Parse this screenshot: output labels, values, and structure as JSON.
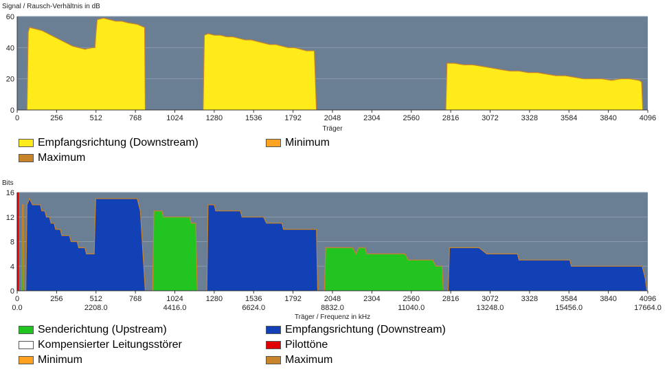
{
  "colors": {
    "plot_bg": "#6a7f93",
    "grid": "#8a9aab",
    "snr_fill": "#ffea1a",
    "downstream": "#1240b5",
    "upstream": "#22c422",
    "crosstalk": "#ffffff",
    "pilot": "#e00000",
    "minimum": "#ffa21f",
    "maximum": "#c8842a"
  },
  "chart_data": [
    {
      "type": "area",
      "title": "Signal / Rausch-Verhältnis in dB",
      "xlabel": "Träger",
      "ylabel": "Signal / Rausch-Verhältnis in dB",
      "xlim": [
        0,
        4096
      ],
      "ylim": [
        0,
        60
      ],
      "xticks": [
        "0",
        "256",
        "512",
        "768",
        "1024",
        "1280",
        "1536",
        "1792",
        "2048",
        "2304",
        "2560",
        "2816",
        "3072",
        "3328",
        "3584",
        "3840",
        "4096"
      ],
      "yticks": [
        "0",
        "20",
        "40",
        "60"
      ],
      "series": [
        {
          "name": "Empfangsrichtung (Downstream)",
          "color_key": "snr_fill",
          "segments": [
            [
              [
                64,
                0
              ],
              [
                72,
                50
              ],
              [
                80,
                53
              ],
              [
                120,
                52
              ],
              [
                160,
                51
              ],
              [
                200,
                49
              ],
              [
                240,
                47
              ],
              [
                280,
                45
              ],
              [
                320,
                43
              ],
              [
                360,
                41
              ],
              [
                400,
                40
              ],
              [
                440,
                39
              ],
              [
                490,
                40
              ],
              [
                505,
                40
              ],
              [
                512,
                50
              ],
              [
                520,
                58
              ],
              [
                560,
                59
              ],
              [
                600,
                58
              ],
              [
                640,
                57
              ],
              [
                680,
                57
              ],
              [
                720,
                56
              ],
              [
                780,
                55
              ],
              [
                828,
                53
              ],
              [
                832,
                0
              ]
            ],
            [
              [
                1208,
                0
              ],
              [
                1216,
                48
              ],
              [
                1240,
                49
              ],
              [
                1280,
                48
              ],
              [
                1320,
                48
              ],
              [
                1360,
                47
              ],
              [
                1400,
                47
              ],
              [
                1440,
                46
              ],
              [
                1480,
                45
              ],
              [
                1520,
                45
              ],
              [
                1560,
                44
              ],
              [
                1600,
                43
              ],
              [
                1640,
                42
              ],
              [
                1680,
                42
              ],
              [
                1720,
                41
              ],
              [
                1760,
                40
              ],
              [
                1800,
                40
              ],
              [
                1840,
                39
              ],
              [
                1880,
                38
              ],
              [
                1930,
                38
              ],
              [
                1944,
                0
              ]
            ],
            [
              [
                2784,
                0
              ],
              [
                2792,
                30
              ],
              [
                2840,
                30
              ],
              [
                2900,
                29
              ],
              [
                2960,
                29
              ],
              [
                3020,
                28
              ],
              [
                3080,
                27
              ],
              [
                3140,
                26
              ],
              [
                3200,
                25
              ],
              [
                3260,
                25
              ],
              [
                3320,
                24
              ],
              [
                3380,
                24
              ],
              [
                3440,
                23
              ],
              [
                3500,
                22
              ],
              [
                3560,
                22
              ],
              [
                3620,
                21
              ],
              [
                3680,
                20
              ],
              [
                3740,
                20
              ],
              [
                3800,
                20
              ],
              [
                3860,
                19
              ],
              [
                3920,
                20
              ],
              [
                3980,
                20
              ],
              [
                4040,
                19
              ],
              [
                4056,
                18
              ],
              [
                4064,
                0
              ]
            ]
          ]
        }
      ],
      "legend": [
        {
          "label": "Empfangsrichtung (Downstream)",
          "color_key": "snr_fill"
        },
        {
          "label": "Minimum",
          "color_key": "minimum"
        },
        {
          "label": "Maximum",
          "color_key": "maximum"
        }
      ]
    },
    {
      "type": "area",
      "title": "Bits",
      "xlabel": "Träger / Frequenz in kHz",
      "ylabel": "Bits",
      "xlim": [
        0,
        4096
      ],
      "ylim": [
        0,
        16
      ],
      "xticks": [
        "0",
        "256",
        "512",
        "768",
        "1024",
        "1280",
        "1536",
        "1792",
        "2048",
        "2304",
        "2560",
        "2816",
        "3072",
        "3328",
        "3584",
        "3840",
        "4096"
      ],
      "xticks_khz": [
        "0.0",
        "",
        "2208.0",
        "",
        "4416.0",
        "",
        "6624.0",
        "",
        "8832.0",
        "",
        "11040.0",
        "",
        "13248.0",
        "",
        "15456.0",
        "",
        "17664.0"
      ],
      "yticks": [
        "0",
        "4",
        "8",
        "12",
        "16"
      ],
      "series": [
        {
          "name": "Senderichtung (Upstream)",
          "color_key": "upstream",
          "segments": [
            [
              [
                30,
                0
              ],
              [
                34,
                14
              ],
              [
                40,
                14
              ],
              [
                44,
                0
              ]
            ],
            [
              [
                880,
                0
              ],
              [
                888,
                13
              ],
              [
                940,
                13
              ],
              [
                950,
                12
              ],
              [
                1100,
                12
              ],
              [
                1120,
                12
              ],
              [
                1130,
                11
              ],
              [
                1160,
                11
              ],
              [
                1170,
                0
              ]
            ],
            [
              [
                1996,
                0
              ],
              [
                2004,
                7
              ],
              [
                2180,
                7
              ],
              [
                2200,
                6
              ],
              [
                2220,
                7
              ],
              [
                2260,
                7
              ],
              [
                2270,
                6
              ],
              [
                2520,
                6
              ],
              [
                2540,
                5
              ],
              [
                2700,
                5
              ],
              [
                2720,
                4
              ],
              [
                2760,
                4
              ],
              [
                2768,
                0
              ]
            ]
          ]
        },
        {
          "name": "Empfangsrichtung (Downstream)",
          "color_key": "downstream",
          "segments": [
            [
              [
                56,
                0
              ],
              [
                64,
                14
              ],
              [
                80,
                15
              ],
              [
                100,
                14
              ],
              [
                150,
                14
              ],
              [
                160,
                13
              ],
              [
                180,
                13
              ],
              [
                190,
                12
              ],
              [
                210,
                12
              ],
              [
                220,
                11
              ],
              [
                240,
                11
              ],
              [
                250,
                10
              ],
              [
                280,
                10
              ],
              [
                290,
                9
              ],
              [
                320,
                9
              ],
              [
                340,
                9
              ],
              [
                350,
                8
              ],
              [
                390,
                8
              ],
              [
                400,
                7
              ],
              [
                440,
                7
              ],
              [
                450,
                6
              ],
              [
                480,
                6
              ],
              [
                500,
                6
              ],
              [
                510,
                15
              ],
              [
                560,
                15
              ],
              [
                700,
                15
              ],
              [
                780,
                15
              ],
              [
                800,
                13
              ],
              [
                832,
                0
              ]
            ],
            [
              [
                1232,
                0
              ],
              [
                1240,
                14
              ],
              [
                1260,
                14
              ],
              [
                1280,
                14
              ],
              [
                1290,
                13
              ],
              [
                1320,
                13
              ],
              [
                1360,
                13
              ],
              [
                1450,
                13
              ],
              [
                1460,
                12
              ],
              [
                1600,
                12
              ],
              [
                1620,
                11
              ],
              [
                1700,
                11
              ],
              [
                1720,
                11
              ],
              [
                1730,
                10
              ],
              [
                1760,
                10
              ],
              [
                1780,
                10
              ],
              [
                1900,
                10
              ],
              [
                1944,
                10
              ],
              [
                1952,
                0
              ]
            ],
            [
              [
                2800,
                0
              ],
              [
                2808,
                7
              ],
              [
                2900,
                7
              ],
              [
                3000,
                7
              ],
              [
                3050,
                6
              ],
              [
                3100,
                6
              ],
              [
                3120,
                6
              ],
              [
                3250,
                6
              ],
              [
                3260,
                5
              ],
              [
                3400,
                5
              ],
              [
                3500,
                5
              ],
              [
                3590,
                5
              ],
              [
                3600,
                4
              ],
              [
                3700,
                4
              ],
              [
                3800,
                4
              ],
              [
                3900,
                4
              ],
              [
                4000,
                4
              ],
              [
                4060,
                4
              ],
              [
                4080,
                2
              ],
              [
                4090,
                0
              ]
            ]
          ]
        }
      ],
      "pilot_tones": [
        4
      ],
      "legend": [
        {
          "label": "Senderichtung (Upstream)",
          "color_key": "upstream"
        },
        {
          "label": "Empfangsrichtung (Downstream)",
          "color_key": "downstream"
        },
        {
          "label": "Kompensierter Leitungsstörer",
          "color_key": "crosstalk"
        },
        {
          "label": "Pilottöne",
          "color_key": "pilot"
        },
        {
          "label": "Minimum",
          "color_key": "minimum"
        },
        {
          "label": "Maximum",
          "color_key": "maximum"
        }
      ]
    }
  ]
}
